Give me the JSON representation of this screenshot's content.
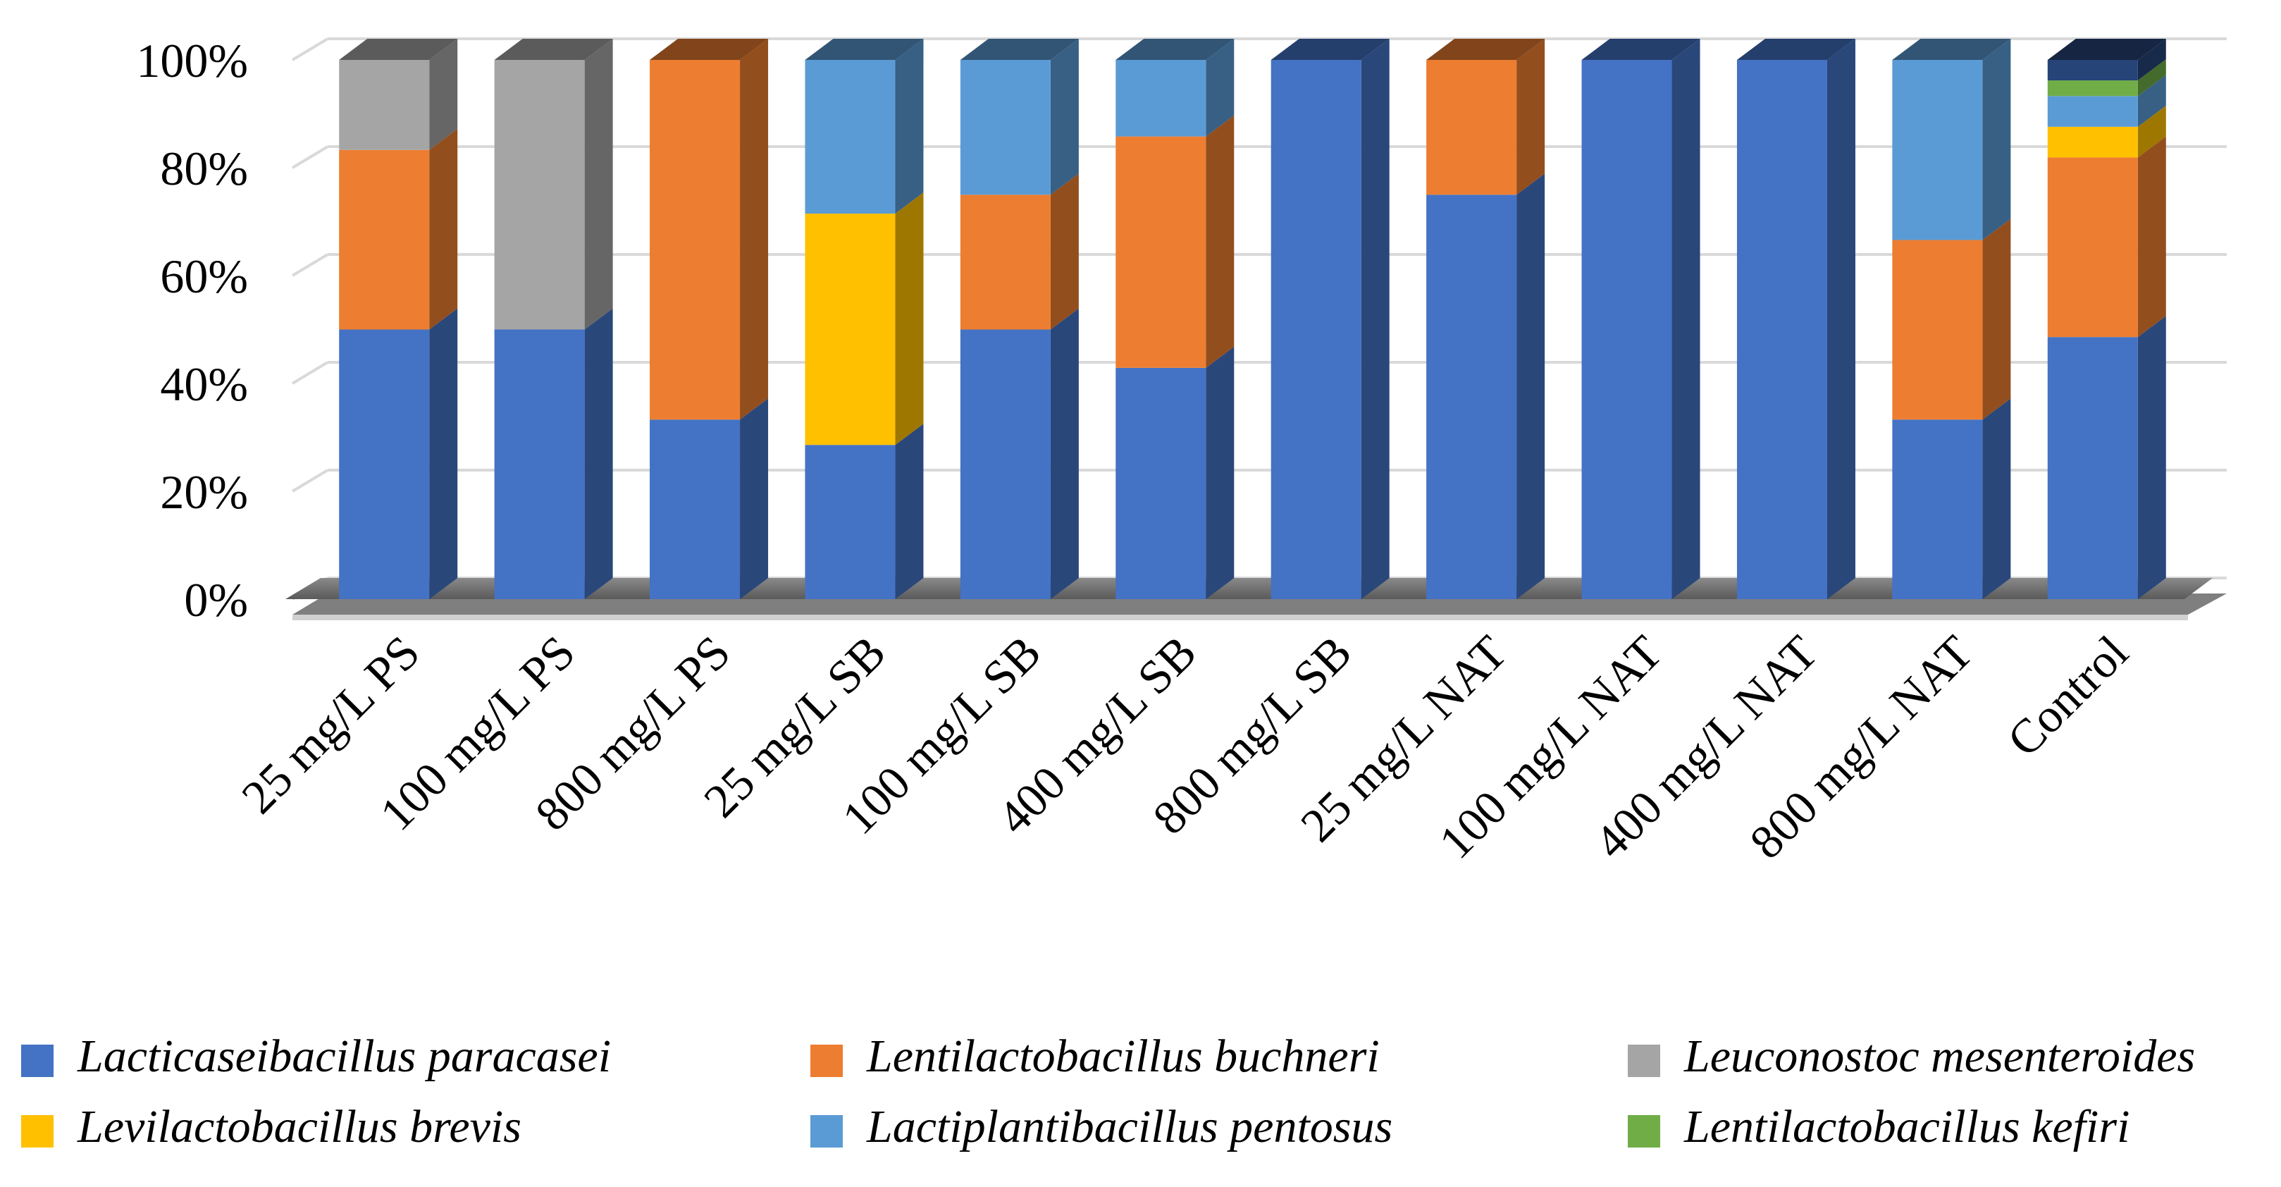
{
  "chart_data": {
    "type": "bar",
    "subtype": "stacked-100-percent-3d",
    "title": "",
    "xlabel": "",
    "ylabel": "",
    "ylim": [
      0,
      100
    ],
    "yticks": [
      "0%",
      "20%",
      "40%",
      "60%",
      "80%",
      "100%"
    ],
    "grid": true,
    "legend_position": "bottom",
    "categories": [
      "25 mg/L PS",
      "100 mg/L PS",
      "800 mg/L PS",
      "25 mg/L SB",
      "100 mg/L SB",
      "400 mg/L SB",
      "800 mg/L SB",
      "25 mg/L NAT",
      "100 mg/L NAT",
      "400 mg/L NAT",
      "800 mg/L NAT",
      "Control"
    ],
    "series": [
      {
        "name": "Lacticaseibacillus paracasei",
        "color": "#4472C4",
        "values": [
          50,
          50,
          33.3,
          28.6,
          50,
          42.9,
          100,
          75,
          100,
          100,
          33.3,
          48.6
        ]
      },
      {
        "name": "Lentilactobacillus buchneri",
        "color": "#ED7D31",
        "values": [
          33.3,
          0,
          66.7,
          0,
          25,
          42.9,
          0,
          25,
          0,
          0,
          33.3,
          33.3
        ]
      },
      {
        "name": "Leuconostoc mesenteroides",
        "color": "#A5A5A5",
        "values": [
          16.7,
          50,
          0,
          0,
          0,
          0,
          0,
          0,
          0,
          0,
          0,
          0
        ]
      },
      {
        "name": "Levilactobacillus brevis",
        "color": "#FFC000",
        "values": [
          0,
          0,
          0,
          42.9,
          0,
          0,
          0,
          0,
          0,
          0,
          0,
          5.7
        ]
      },
      {
        "name": "Lactiplantibacillus pentosus",
        "color": "#5B9BD5",
        "values": [
          0,
          0,
          0,
          28.5,
          25,
          14.2,
          0,
          0,
          0,
          0,
          33.4,
          5.7
        ]
      },
      {
        "name": "Lentilactobacillus kefiri",
        "color": "#70AD47",
        "values": [
          0,
          0,
          0,
          0,
          0,
          0,
          0,
          0,
          0,
          0,
          0,
          2.9
        ]
      },
      {
        "name": "",
        "color": "#264478",
        "values": [
          0,
          0,
          0,
          0,
          0,
          0,
          0,
          0,
          0,
          0,
          0,
          3.8
        ]
      }
    ]
  }
}
